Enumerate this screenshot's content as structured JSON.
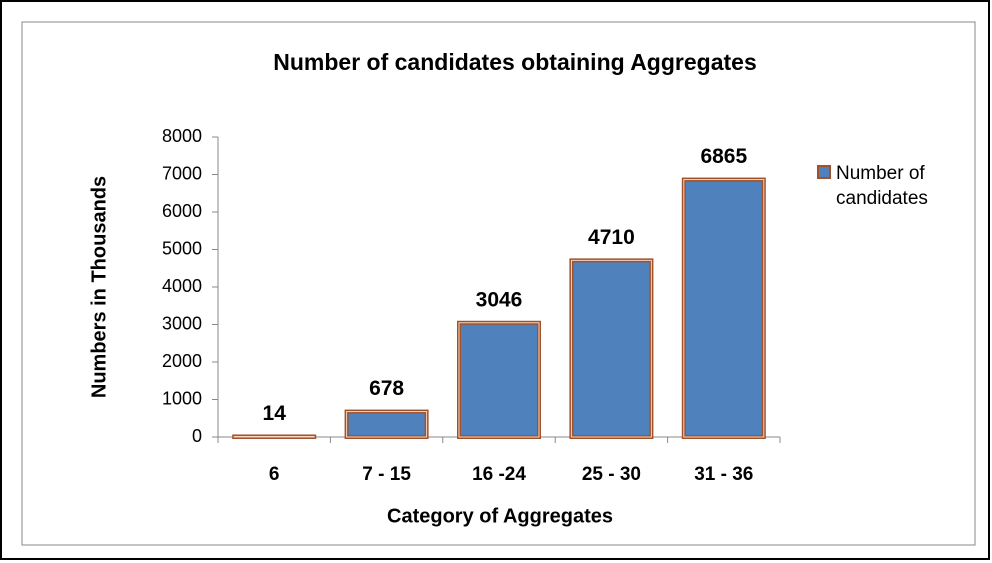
{
  "chart_data": {
    "type": "bar",
    "title": "Number of candidates obtaining Aggregates",
    "x_label": "Category of Aggregates",
    "y_label": "Numbers in Thousands",
    "categories": [
      "6",
      "7 - 15",
      "16 -24",
      "25 - 30",
      "31 - 36"
    ],
    "series": [
      {
        "name": "Number of candidates",
        "color": "#4f81bd",
        "edge_color": "#a0522d",
        "values": [
          14,
          678,
          3046,
          4710,
          6865
        ]
      }
    ],
    "ylim": [
      0,
      8000
    ],
    "yticks": [
      0,
      1000,
      2000,
      3000,
      4000,
      5000,
      6000,
      7000,
      8000
    ],
    "grid": false,
    "legend": "right"
  }
}
